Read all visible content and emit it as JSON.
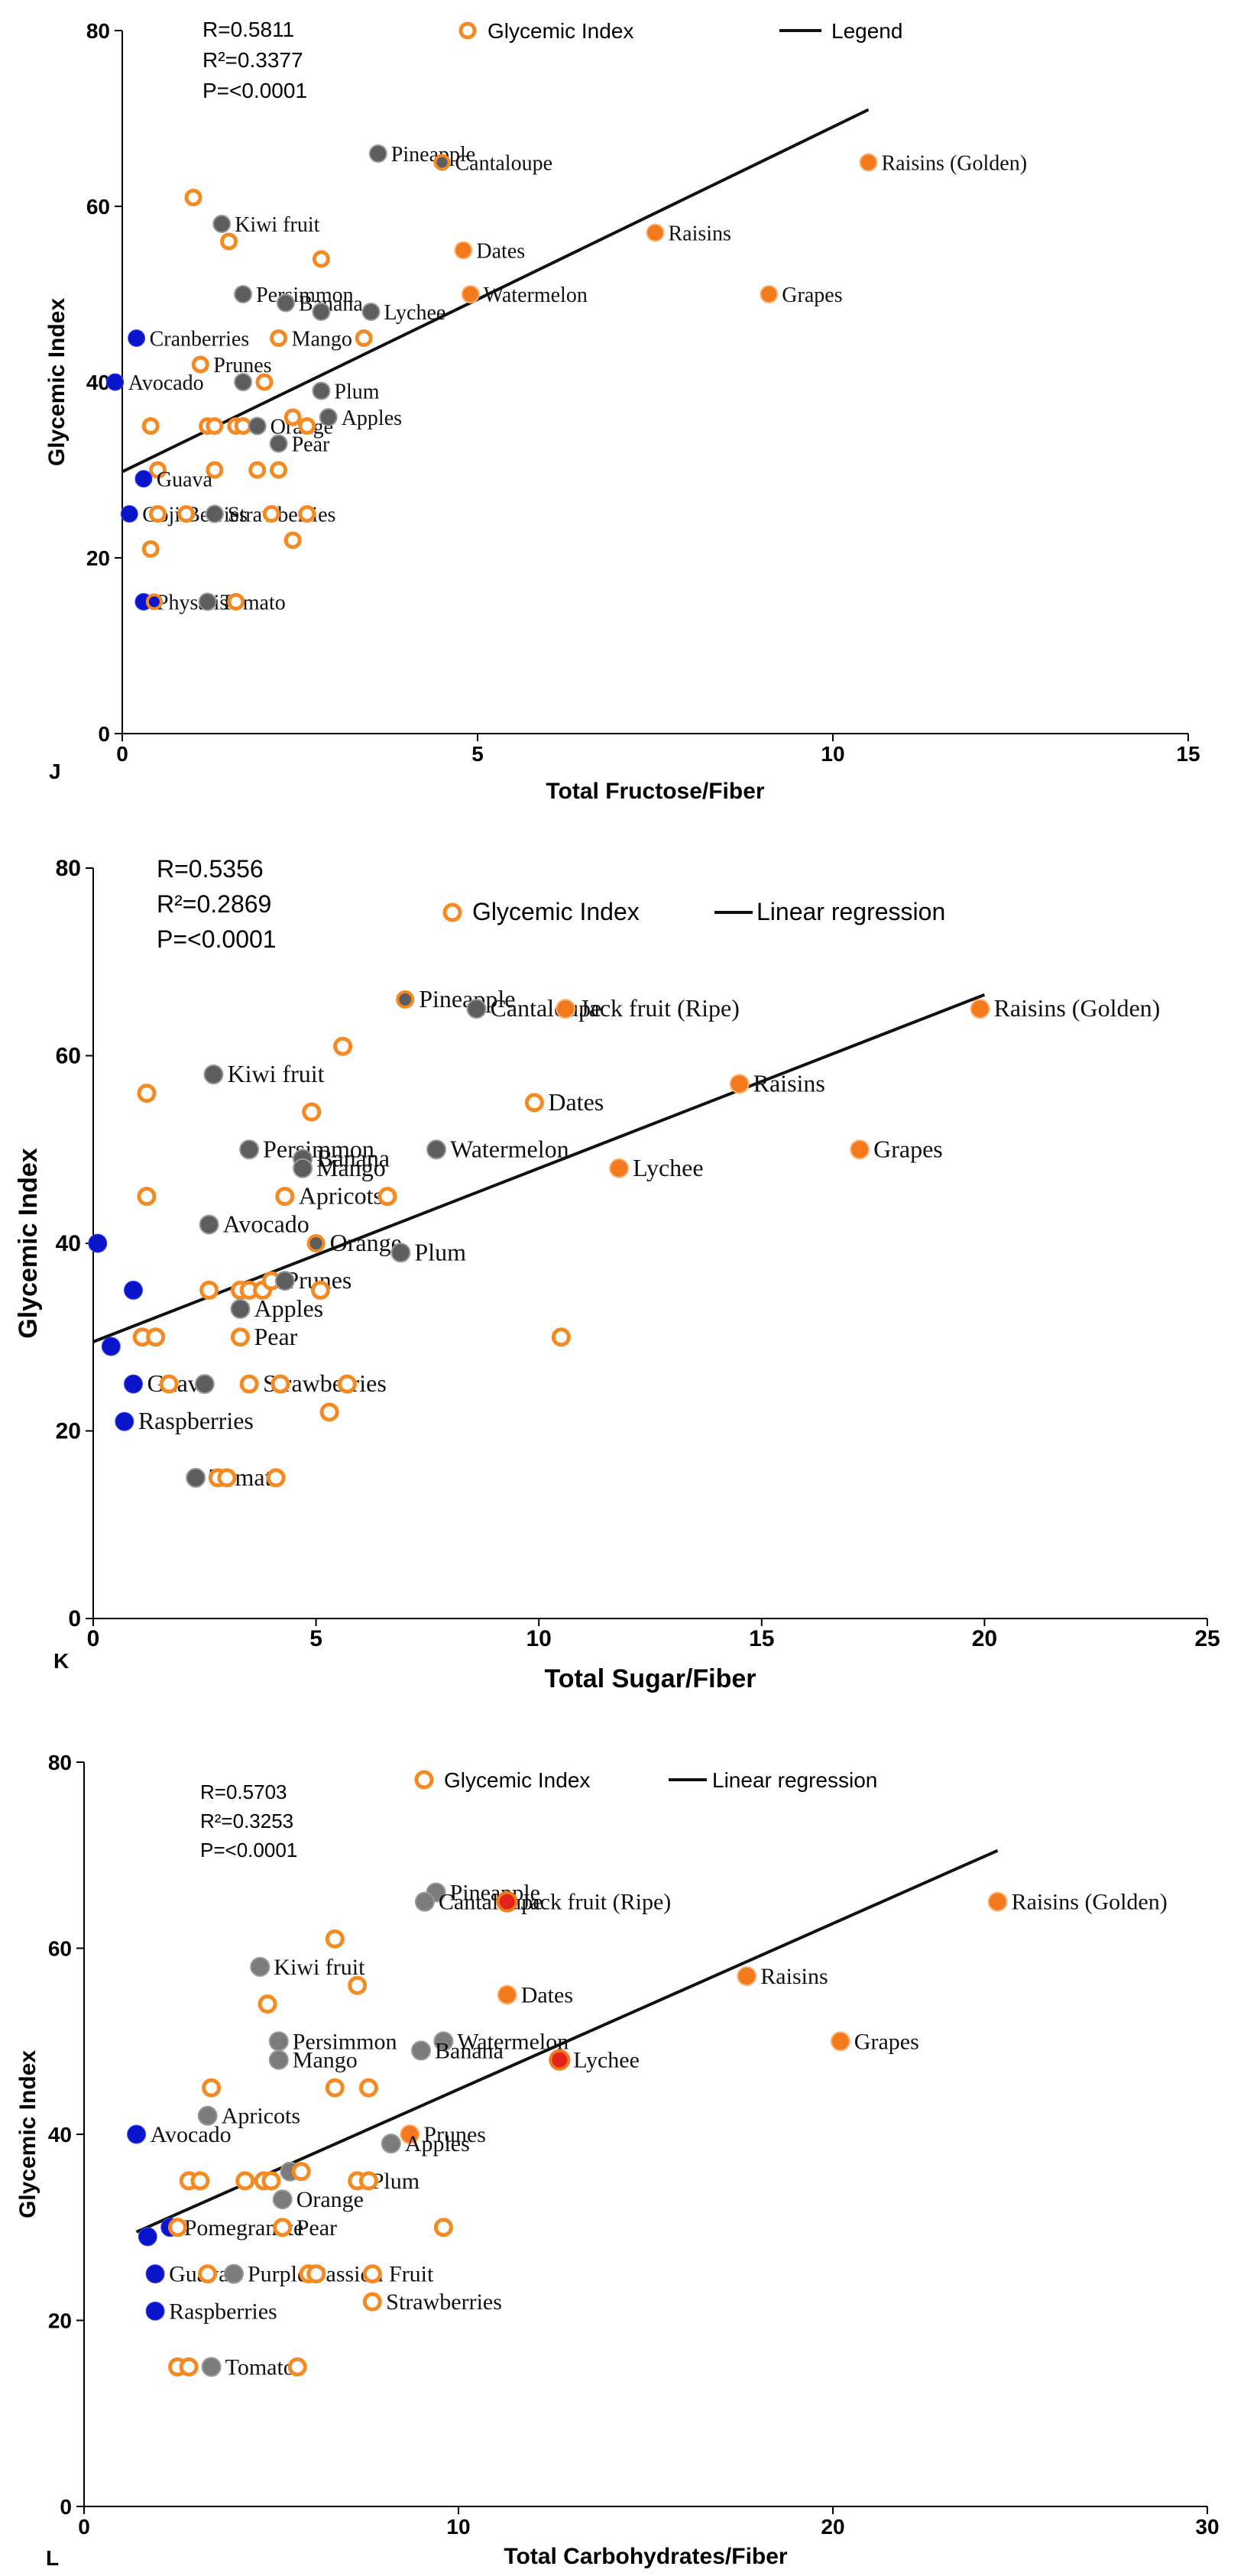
{
  "chart_data": [
    {
      "type": "scatter",
      "panel": "J",
      "xlabel": "Total Fructose/Fiber",
      "ylabel": "Glycemic Index",
      "xlim": [
        0,
        15
      ],
      "ylim": [
        0,
        80
      ],
      "xticks": [
        0,
        5,
        10,
        15
      ],
      "yticks": [
        0,
        20,
        40,
        60,
        80
      ],
      "stats": [
        "R=0.5811",
        "R²=0.3377",
        "P=<0.0001"
      ],
      "legend": {
        "marker": "Glycemic Index",
        "line": "Legend"
      },
      "regression": {
        "x": [
          0,
          10.5
        ],
        "y": [
          29.8,
          71
        ]
      },
      "points": [
        {
          "x": 3.6,
          "y": 66,
          "c": "gray",
          "label": "Pineapple"
        },
        {
          "x": 4.5,
          "y": 65,
          "c": "gray-ring",
          "label": "Cantaloupe"
        },
        {
          "x": 10.5,
          "y": 65,
          "c": "orange",
          "label": "Raisins (Golden)"
        },
        {
          "x": 1.0,
          "y": 61,
          "c": "ring"
        },
        {
          "x": 1.4,
          "y": 58,
          "c": "gray",
          "label": "Kiwi fruit"
        },
        {
          "x": 1.5,
          "y": 56,
          "c": "ring"
        },
        {
          "x": 7.5,
          "y": 57,
          "c": "orange",
          "label": "Raisins"
        },
        {
          "x": 4.8,
          "y": 55,
          "c": "orange",
          "label": "Dates"
        },
        {
          "x": 2.8,
          "y": 54,
          "c": "ring"
        },
        {
          "x": 1.7,
          "y": 50,
          "c": "gray",
          "label": "Persimmon"
        },
        {
          "x": 2.3,
          "y": 49,
          "c": "gray",
          "label": "Banana"
        },
        {
          "x": 2.8,
          "y": 48,
          "c": "gray"
        },
        {
          "x": 3.5,
          "y": 48,
          "c": "gray",
          "label": "Lychee"
        },
        {
          "x": 4.9,
          "y": 50,
          "c": "orange",
          "label": "Watermelon"
        },
        {
          "x": 9.1,
          "y": 50,
          "c": "orange",
          "label": "Grapes"
        },
        {
          "x": 2.2,
          "y": 45,
          "c": "ring",
          "label": "Mango"
        },
        {
          "x": 3.4,
          "y": 45,
          "c": "ring"
        },
        {
          "x": 0.2,
          "y": 45,
          "c": "blue",
          "label": "Cranberries"
        },
        {
          "x": 1.1,
          "y": 42,
          "c": "ring",
          "label": "Prunes"
        },
        {
          "x": -0.1,
          "y": 40,
          "c": "blue",
          "label": "Avocado"
        },
        {
          "x": 1.7,
          "y": 40,
          "c": "gray"
        },
        {
          "x": 2.0,
          "y": 40,
          "c": "ring"
        },
        {
          "x": 2.8,
          "y": 39,
          "c": "gray",
          "label": "Plum"
        },
        {
          "x": 0.4,
          "y": 35,
          "c": "ring"
        },
        {
          "x": 1.2,
          "y": 35,
          "c": "ring"
        },
        {
          "x": 1.3,
          "y": 35,
          "c": "ring"
        },
        {
          "x": 1.6,
          "y": 35,
          "c": "ring"
        },
        {
          "x": 1.7,
          "y": 35,
          "c": "ring"
        },
        {
          "x": 1.9,
          "y": 35,
          "c": "gray",
          "label": "Orange"
        },
        {
          "x": 2.4,
          "y": 36,
          "c": "ring"
        },
        {
          "x": 2.6,
          "y": 35,
          "c": "ring"
        },
        {
          "x": 2.9,
          "y": 36,
          "c": "gray",
          "label": "Apples"
        },
        {
          "x": 2.2,
          "y": 33,
          "c": "gray",
          "label": "Pear"
        },
        {
          "x": 0.5,
          "y": 30,
          "c": "ring"
        },
        {
          "x": 1.3,
          "y": 30,
          "c": "ring"
        },
        {
          "x": 1.9,
          "y": 30,
          "c": "ring"
        },
        {
          "x": 2.2,
          "y": 30,
          "c": "ring"
        },
        {
          "x": 0.3,
          "y": 29,
          "c": "blue",
          "label": "Guava"
        },
        {
          "x": 0.1,
          "y": 25,
          "c": "blue",
          "label": "Goji Berries"
        },
        {
          "x": 0.5,
          "y": 25,
          "c": "ring"
        },
        {
          "x": 0.9,
          "y": 25,
          "c": "ring"
        },
        {
          "x": 1.3,
          "y": 25,
          "c": "gray",
          "label": "Strawberries"
        },
        {
          "x": 2.1,
          "y": 25,
          "c": "ring"
        },
        {
          "x": 2.6,
          "y": 25,
          "c": "ring"
        },
        {
          "x": 2.4,
          "y": 22,
          "c": "ring"
        },
        {
          "x": 0.4,
          "y": 21,
          "c": "ring"
        },
        {
          "x": 0.3,
          "y": 15,
          "c": "blue",
          "label": "Physalis"
        },
        {
          "x": 0.45,
          "y": 15,
          "c": "ring-blue"
        },
        {
          "x": 1.2,
          "y": 15,
          "c": "gray",
          "label": "Tomato"
        },
        {
          "x": 1.6,
          "y": 15,
          "c": "ring"
        }
      ]
    },
    {
      "type": "scatter",
      "panel": "K",
      "xlabel": "Total Sugar/Fiber",
      "ylabel": "Glycemic Index",
      "xlim": [
        0,
        25
      ],
      "ylim": [
        0,
        80
      ],
      "xticks": [
        0,
        5,
        10,
        15,
        20,
        25
      ],
      "yticks": [
        0,
        20,
        40,
        60,
        80
      ],
      "stats": [
        "R=0.5356",
        "R²=0.2869",
        "P=<0.0001"
      ],
      "legend": {
        "marker": "Glycemic Index",
        "line": "Linear regression"
      },
      "regression": {
        "x": [
          0,
          20
        ],
        "y": [
          29.5,
          66.5
        ]
      },
      "points": [
        {
          "x": 7.0,
          "y": 66,
          "c": "gray-ring",
          "label": "Pineapple"
        },
        {
          "x": 8.6,
          "y": 65,
          "c": "gray",
          "label": "Cantaloupe"
        },
        {
          "x": 10.6,
          "y": 65,
          "c": "orange",
          "label": "Jack fruit (Ripe)"
        },
        {
          "x": 19.9,
          "y": 65,
          "c": "orange",
          "label": "Raisins (Golden)"
        },
        {
          "x": 5.6,
          "y": 61,
          "c": "ring"
        },
        {
          "x": 2.7,
          "y": 58,
          "c": "gray",
          "label": "Kiwi fruit"
        },
        {
          "x": 14.5,
          "y": 57,
          "c": "orange",
          "label": "Raisins"
        },
        {
          "x": 1.2,
          "y": 56,
          "c": "ring"
        },
        {
          "x": 9.9,
          "y": 55,
          "c": "ring",
          "label": "Dates"
        },
        {
          "x": 4.9,
          "y": 54,
          "c": "ring"
        },
        {
          "x": 3.5,
          "y": 50,
          "c": "gray",
          "label": "Persimmon"
        },
        {
          "x": 7.7,
          "y": 50,
          "c": "gray",
          "label": "Watermelon"
        },
        {
          "x": 17.2,
          "y": 50,
          "c": "orange",
          "label": "Grapes"
        },
        {
          "x": 4.7,
          "y": 49,
          "c": "gray",
          "label": "Banana"
        },
        {
          "x": 4.7,
          "y": 48,
          "c": "gray",
          "label": "Mango"
        },
        {
          "x": 11.8,
          "y": 48,
          "c": "orange",
          "label": "Lychee"
        },
        {
          "x": 1.2,
          "y": 45,
          "c": "ring"
        },
        {
          "x": 4.3,
          "y": 45,
          "c": "ring",
          "label": "Apricots"
        },
        {
          "x": 6.6,
          "y": 45,
          "c": "ring"
        },
        {
          "x": 2.6,
          "y": 42,
          "c": "gray",
          "label": "Avocado"
        },
        {
          "x": 0.1,
          "y": 40,
          "c": "blue"
        },
        {
          "x": 5.0,
          "y": 40,
          "c": "gray-ring",
          "label": "Orange"
        },
        {
          "x": 6.9,
          "y": 39,
          "c": "gray",
          "label": "Plum"
        },
        {
          "x": 0.9,
          "y": 35,
          "c": "blue"
        },
        {
          "x": 2.6,
          "y": 35,
          "c": "ring"
        },
        {
          "x": 3.3,
          "y": 35,
          "c": "ring"
        },
        {
          "x": 3.5,
          "y": 35,
          "c": "ring"
        },
        {
          "x": 3.8,
          "y": 35,
          "c": "ring"
        },
        {
          "x": 4.0,
          "y": 36,
          "c": "ring",
          "label": "Prunes"
        },
        {
          "x": 4.3,
          "y": 36,
          "c": "gray"
        },
        {
          "x": 5.1,
          "y": 35,
          "c": "ring"
        },
        {
          "x": 3.3,
          "y": 33,
          "c": "gray",
          "label": "Apples"
        },
        {
          "x": 3.3,
          "y": 30,
          "c": "ring",
          "label": "Pear"
        },
        {
          "x": 1.1,
          "y": 30,
          "c": "ring"
        },
        {
          "x": 1.4,
          "y": 30,
          "c": "ring"
        },
        {
          "x": 10.5,
          "y": 30,
          "c": "ring"
        },
        {
          "x": 0.4,
          "y": 29,
          "c": "blue"
        },
        {
          "x": 0.9,
          "y": 25,
          "c": "blue",
          "label": "Guava"
        },
        {
          "x": 1.7,
          "y": 25,
          "c": "ring"
        },
        {
          "x": 2.5,
          "y": 25,
          "c": "gray"
        },
        {
          "x": 3.5,
          "y": 25,
          "c": "ring",
          "label": "Strawberries"
        },
        {
          "x": 4.2,
          "y": 25,
          "c": "ring"
        },
        {
          "x": 5.7,
          "y": 25,
          "c": "ring"
        },
        {
          "x": 5.3,
          "y": 22,
          "c": "ring"
        },
        {
          "x": 0.7,
          "y": 21,
          "c": "blue",
          "label": "Raspberries"
        },
        {
          "x": 2.3,
          "y": 15,
          "c": "gray",
          "label": "Tomato"
        },
        {
          "x": 2.8,
          "y": 15,
          "c": "ring"
        },
        {
          "x": 3.0,
          "y": 15,
          "c": "ring"
        },
        {
          "x": 4.1,
          "y": 15,
          "c": "ring"
        }
      ]
    },
    {
      "type": "scatter",
      "panel": "L",
      "xlabel": "Total Carbohydrates/Fiber",
      "ylabel": "Glycemic Index",
      "xlim": [
        0,
        30
      ],
      "ylim": [
        0,
        80
      ],
      "xticks": [
        0,
        10,
        20,
        30
      ],
      "yticks": [
        0,
        20,
        40,
        60,
        80
      ],
      "stats": [
        "R=0.5703",
        "R²=0.3253",
        "P=<0.0001"
      ],
      "legend": {
        "marker": "Glycemic Index",
        "line": "Linear regression"
      },
      "regression": {
        "x": [
          1.4,
          24.4
        ],
        "y": [
          29.5,
          70.5
        ]
      },
      "points": [
        {
          "x": 9.4,
          "y": 66,
          "c": "gray",
          "label": "Pineapple"
        },
        {
          "x": 9.1,
          "y": 65,
          "c": "gray",
          "label": "Cantaloupe"
        },
        {
          "x": 11.3,
          "y": 65,
          "c": "red",
          "label": "Jack fruit (Ripe)"
        },
        {
          "x": 24.4,
          "y": 65,
          "c": "orange",
          "label": "Raisins (Golden)"
        },
        {
          "x": 6.7,
          "y": 61,
          "c": "ring"
        },
        {
          "x": 4.7,
          "y": 58,
          "c": "gray",
          "label": "Kiwi fruit"
        },
        {
          "x": 17.7,
          "y": 57,
          "c": "orange",
          "label": "Raisins"
        },
        {
          "x": 7.3,
          "y": 56,
          "c": "ring"
        },
        {
          "x": 11.3,
          "y": 55,
          "c": "orange",
          "label": "Dates"
        },
        {
          "x": 4.9,
          "y": 54,
          "c": "ring"
        },
        {
          "x": 5.2,
          "y": 50,
          "c": "gray",
          "label": "Persimmon"
        },
        {
          "x": 9.6,
          "y": 50,
          "c": "gray",
          "label": "Watermelon"
        },
        {
          "x": 20.2,
          "y": 50,
          "c": "orange",
          "label": "Grapes"
        },
        {
          "x": 5.2,
          "y": 48,
          "c": "gray",
          "label": "Mango"
        },
        {
          "x": 9.0,
          "y": 49,
          "c": "gray",
          "label": "Banana"
        },
        {
          "x": 12.7,
          "y": 48,
          "c": "red",
          "label": "Lychee"
        },
        {
          "x": 3.4,
          "y": 45,
          "c": "ring"
        },
        {
          "x": 6.7,
          "y": 45,
          "c": "ring"
        },
        {
          "x": 7.6,
          "y": 45,
          "c": "ring"
        },
        {
          "x": 3.3,
          "y": 42,
          "c": "gray",
          "label": "Apricots"
        },
        {
          "x": 1.4,
          "y": 40,
          "c": "blue",
          "label": "Avocado"
        },
        {
          "x": 8.7,
          "y": 40,
          "c": "orange",
          "label": "Prunes"
        },
        {
          "x": 8.2,
          "y": 39,
          "c": "gray",
          "label": "Apples"
        },
        {
          "x": 2.8,
          "y": 35,
          "c": "ring"
        },
        {
          "x": 3.1,
          "y": 35,
          "c": "ring"
        },
        {
          "x": 4.3,
          "y": 35,
          "c": "ring"
        },
        {
          "x": 4.8,
          "y": 35,
          "c": "ring"
        },
        {
          "x": 5.0,
          "y": 35,
          "c": "ring"
        },
        {
          "x": 5.5,
          "y": 36,
          "c": "gray"
        },
        {
          "x": 5.8,
          "y": 36,
          "c": "ring"
        },
        {
          "x": 7.3,
          "y": 35,
          "c": "ring",
          "label": "Plum"
        },
        {
          "x": 7.6,
          "y": 35,
          "c": "ring"
        },
        {
          "x": 5.3,
          "y": 33,
          "c": "gray",
          "label": "Orange"
        },
        {
          "x": 2.3,
          "y": 30,
          "c": "blue",
          "label": "Pomegranate"
        },
        {
          "x": 2.5,
          "y": 30,
          "c": "ring"
        },
        {
          "x": 5.3,
          "y": 30,
          "c": "ring",
          "label": "Pear"
        },
        {
          "x": 9.6,
          "y": 30,
          "c": "ring"
        },
        {
          "x": 1.7,
          "y": 29,
          "c": "blue"
        },
        {
          "x": 1.9,
          "y": 25,
          "c": "blue",
          "label": "Guava"
        },
        {
          "x": 3.3,
          "y": 25,
          "c": "ring"
        },
        {
          "x": 4.0,
          "y": 25,
          "c": "gray",
          "label": "Purple Passion Fruit"
        },
        {
          "x": 6.0,
          "y": 25,
          "c": "ring"
        },
        {
          "x": 6.2,
          "y": 25,
          "c": "ring"
        },
        {
          "x": 7.7,
          "y": 25,
          "c": "ring"
        },
        {
          "x": 7.7,
          "y": 22,
          "c": "ring",
          "label": "Strawberries"
        },
        {
          "x": 1.9,
          "y": 21,
          "c": "blue",
          "label": "Raspberries"
        },
        {
          "x": 2.5,
          "y": 15,
          "c": "ring"
        },
        {
          "x": 2.8,
          "y": 15,
          "c": "ring"
        },
        {
          "x": 3.4,
          "y": 15,
          "c": "gray",
          "label": "Tomato"
        },
        {
          "x": 5.7,
          "y": 15,
          "c": "ring"
        }
      ]
    }
  ],
  "colors": {
    "orange": "#f27a1d",
    "orange_ring": "#f58a22",
    "gray": "#5d5d5d",
    "gray_light": "#7b7b7b",
    "blue": "#0a14c8",
    "red": "#e2231a",
    "axis": "#000000"
  }
}
